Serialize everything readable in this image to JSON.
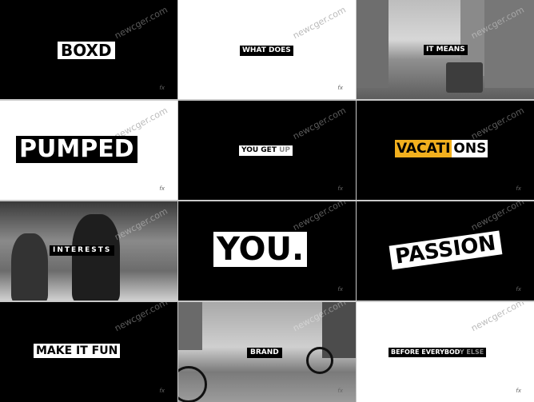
{
  "watermark": "newcger.com",
  "fx_mark": "fx",
  "tiles": {
    "t1": {
      "label": "BOXD"
    },
    "t2": {
      "label": "WHAT DOES"
    },
    "t3": {
      "label": "IT MEANS"
    },
    "t4": {
      "label": "PUMPED"
    },
    "t5": {
      "label_a": "YOU GET ",
      "label_b": "UP"
    },
    "t6": {
      "label_a": "VACATI",
      "label_b": "ONS"
    },
    "t7": {
      "label": "INTERESTS"
    },
    "t8": {
      "label": "YOU."
    },
    "t9": {
      "label": "PASSION"
    },
    "t10": {
      "label": "MAKE IT FUN"
    },
    "t11": {
      "label": "BRAND"
    },
    "t12": {
      "label_a": "BEFORE EVERYBOD",
      "label_b": "Y ELSE"
    }
  },
  "colors": {
    "accent": "#f2b01e",
    "black": "#000000",
    "white": "#ffffff"
  }
}
